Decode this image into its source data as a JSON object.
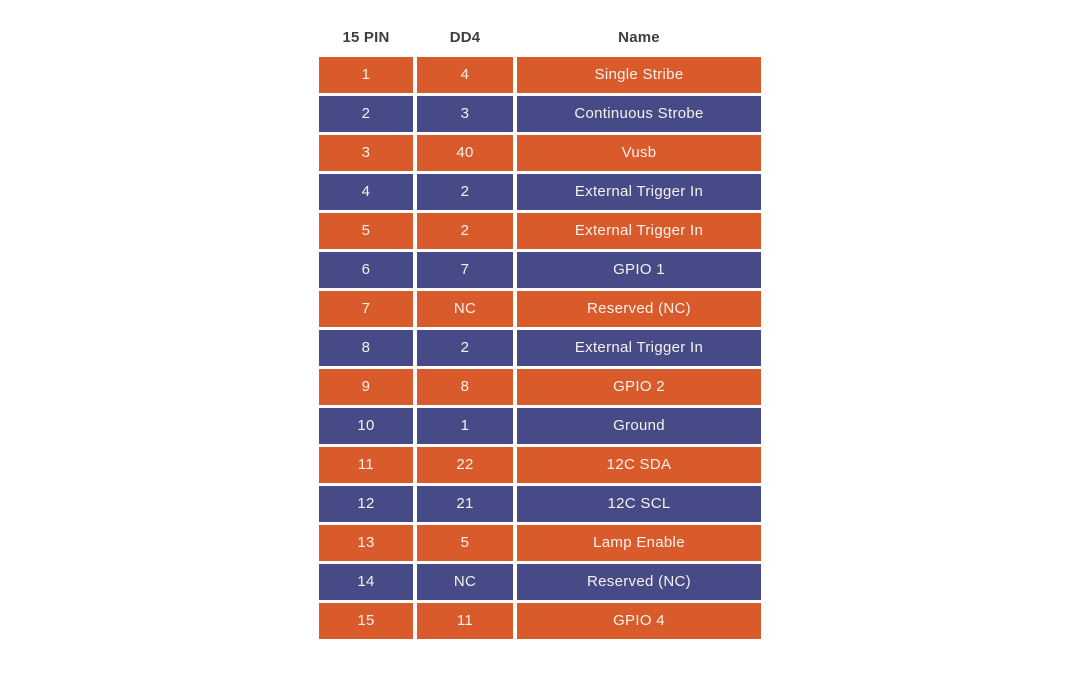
{
  "table": {
    "headers": [
      "15 PIN",
      "DD4",
      "Name"
    ],
    "rows": [
      {
        "pin": "1",
        "dd4": "4",
        "name": "Single Stribe"
      },
      {
        "pin": "2",
        "dd4": "3",
        "name": "Continuous Strobe"
      },
      {
        "pin": "3",
        "dd4": "40",
        "name": "Vusb"
      },
      {
        "pin": "4",
        "dd4": "2",
        "name": "External Trigger In"
      },
      {
        "pin": "5",
        "dd4": "2",
        "name": "External Trigger In"
      },
      {
        "pin": "6",
        "dd4": "7",
        "name": "GPIO 1"
      },
      {
        "pin": "7",
        "dd4": "NC",
        "name": "Reserved (NC)"
      },
      {
        "pin": "8",
        "dd4": "2",
        "name": "External Trigger In"
      },
      {
        "pin": "9",
        "dd4": "8",
        "name": "GPIO 2"
      },
      {
        "pin": "10",
        "dd4": "1",
        "name": "Ground"
      },
      {
        "pin": "11",
        "dd4": "22",
        "name": "12C SDA"
      },
      {
        "pin": "12",
        "dd4": "21",
        "name": "12C SCL"
      },
      {
        "pin": "13",
        "dd4": "5",
        "name": "Lamp Enable"
      },
      {
        "pin": "14",
        "dd4": "NC",
        "name": "Reserved (NC)"
      },
      {
        "pin": "15",
        "dd4": "11",
        "name": "GPIO 4"
      }
    ]
  },
  "colors": {
    "row_odd": "#d95b2c",
    "row_even": "#464b87",
    "header_text": "#3f3f3f",
    "cell_text": "#f6f1ec",
    "background": "#ffffff"
  }
}
